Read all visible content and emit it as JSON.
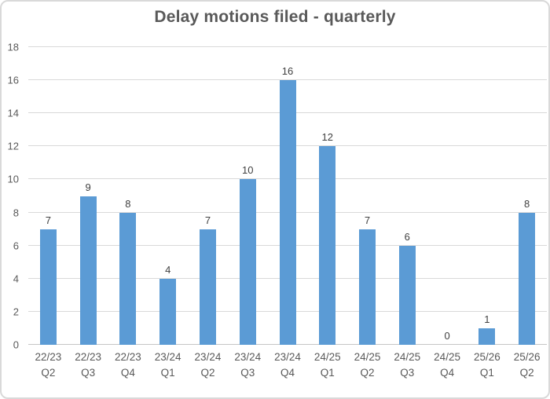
{
  "chart_data": {
    "type": "bar",
    "title": "Delay motions filed - quarterly",
    "categories": [
      "22/23\nQ2",
      "22/23\nQ3",
      "22/23\nQ4",
      "23/24\nQ1",
      "23/24\nQ2",
      "23/24\nQ3",
      "23/24\nQ4",
      "24/25\nQ1",
      "24/25\nQ2",
      "24/25\nQ3",
      "24/25\nQ4",
      "25/26\nQ1",
      "25/26\nQ2"
    ],
    "values": [
      7,
      9,
      8,
      4,
      7,
      10,
      16,
      12,
      7,
      6,
      0,
      1,
      8
    ],
    "data_labels": [
      7,
      9,
      8,
      4,
      7,
      10,
      16,
      12,
      7,
      6,
      0,
      1,
      8
    ],
    "xlabel": "",
    "ylabel": "",
    "ylim": [
      0,
      18
    ],
    "ytick_step": 2,
    "ytick_labels": [
      "0",
      "2",
      "4",
      "6",
      "8",
      "10",
      "12",
      "14",
      "16",
      "18"
    ],
    "grid": true,
    "legend": false,
    "colors": {
      "bar": "#5B9BD5",
      "gridline": "#D9D9D9",
      "axis_line": "#C6C6C6",
      "title": "#595959",
      "tick_label": "#595959",
      "data_label": "#404040",
      "frame_border": "#D9D9D9",
      "background": "#FFFFFF"
    }
  }
}
